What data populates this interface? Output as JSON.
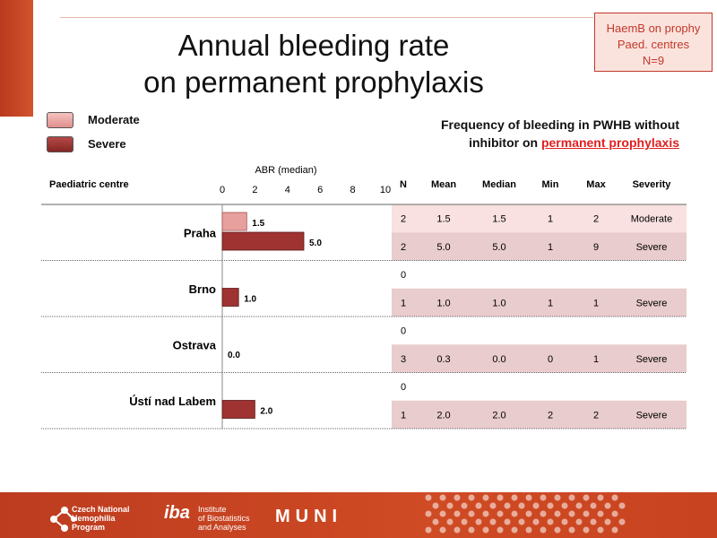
{
  "title_line1": "Annual bleeding rate",
  "title_line2": "on permanent prophylaxis",
  "corner_box": {
    "line1": "HaemB on prophy",
    "line2": "Paed. centres",
    "line3": "N=9"
  },
  "legend": [
    {
      "label": "Moderate",
      "color": "#e8a09e"
    },
    {
      "label": "Severe",
      "color": "#9e3331"
    }
  ],
  "freq_title_part1": "Frequency of bleeding in PWHB without",
  "freq_title_part2": "inhibitor on",
  "freq_title_highlight": "permanent prophylaxis",
  "chart_data": {
    "type": "bar",
    "orientation": "horizontal",
    "xlabel": "ABR (median)",
    "xlim": [
      0,
      10
    ],
    "xticks": [
      0,
      2,
      4,
      6,
      8,
      10
    ],
    "row_header": "Paediatric centre",
    "categories": [
      "Praha",
      "Brno",
      "Ostrava",
      "Ústí nad Labem"
    ],
    "series": [
      {
        "name": "Moderate",
        "values": [
          1.5,
          null,
          null,
          null
        ],
        "labels": [
          "1.5",
          "",
          "",
          ""
        ]
      },
      {
        "name": "Severe",
        "values": [
          5.0,
          1.0,
          0.0,
          2.0
        ],
        "labels": [
          "5.0",
          "1.0",
          "0.0",
          "2.0"
        ]
      }
    ]
  },
  "table": {
    "headers": [
      "N",
      "Mean",
      "Median",
      "Min",
      "Max",
      "Severity"
    ],
    "rows": [
      {
        "severity_class": "moderate",
        "cells": [
          "2",
          "1.5",
          "1.5",
          "1",
          "2",
          "Moderate"
        ]
      },
      {
        "severity_class": "severe",
        "cells": [
          "2",
          "5.0",
          "5.0",
          "1",
          "9",
          "Severe"
        ]
      },
      {
        "severity_class": "none",
        "cells": [
          "0",
          "",
          "",
          "",
          "",
          ""
        ]
      },
      {
        "severity_class": "severe",
        "cells": [
          "1",
          "1.0",
          "1.0",
          "1",
          "1",
          "Severe"
        ]
      },
      {
        "severity_class": "none",
        "cells": [
          "0",
          "",
          "",
          "",
          "",
          ""
        ]
      },
      {
        "severity_class": "severe",
        "cells": [
          "3",
          "0.3",
          "0.0",
          "0",
          "1",
          "Severe"
        ]
      },
      {
        "severity_class": "none",
        "cells": [
          "0",
          "",
          "",
          "",
          "",
          ""
        ]
      },
      {
        "severity_class": "severe",
        "cells": [
          "1",
          "2.0",
          "2.0",
          "2",
          "2",
          "Severe"
        ]
      }
    ]
  },
  "colors": {
    "moderate_row": "#f8e1e0",
    "severe_row": "#e9cccd",
    "moderate_bar": "#e8a09e",
    "severe_bar": "#9e3331",
    "accent": "#c0392b"
  },
  "footer": {
    "cnhp_line1": "Czech National",
    "cnhp_line2": "Hemophilia",
    "cnhp_line3": "Program",
    "iba": "iba",
    "iba_line1": "Institute",
    "iba_line2": "of Biostatistics",
    "iba_line3": "and Analyses",
    "muni": "MUNI"
  }
}
